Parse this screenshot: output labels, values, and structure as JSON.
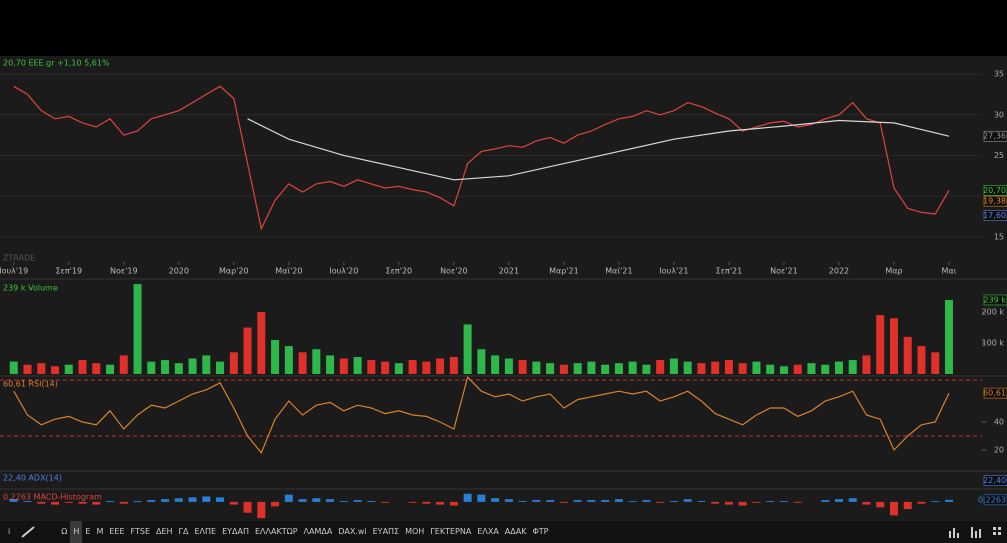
{
  "chart_data": [
    {
      "type": "line",
      "title": "20,70 EEE.gr +1,10 5,61%",
      "title_color": "#3ec43e",
      "watermark": "ZTRADE",
      "xlim": [
        -0.5,
        35.2
      ],
      "ylim": [
        11.9,
        37.1
      ],
      "yticks": [
        15,
        20,
        25,
        30,
        35
      ],
      "grid": true,
      "xticks": [
        {
          "value": 0,
          "label": "Ιουλ'19"
        },
        {
          "value": 2,
          "label": "Σεπ'19"
        },
        {
          "value": 4,
          "label": "Νοε'19"
        },
        {
          "value": 6,
          "label": "2020"
        },
        {
          "value": 8,
          "label": "Μαρ'20"
        },
        {
          "value": 10,
          "label": "Μαϊ'20"
        },
        {
          "value": 12,
          "label": "Ιουλ'20"
        },
        {
          "value": 14,
          "label": "Σεπ'20"
        },
        {
          "value": 16,
          "label": "Νοε'20"
        },
        {
          "value": 18,
          "label": "2021"
        },
        {
          "value": 20,
          "label": "Μαρ'21"
        },
        {
          "value": 22,
          "label": "Μαϊ'21"
        },
        {
          "value": 24,
          "label": "Ιουλ'21"
        },
        {
          "value": 26,
          "label": "Σεπ'21"
        },
        {
          "value": 28,
          "label": "Νοε'21"
        },
        {
          "value": 30,
          "label": "2022"
        },
        {
          "value": 32,
          "label": "Μαρ"
        },
        {
          "value": 34,
          "label": "Μαι"
        }
      ],
      "series": [
        {
          "color": "#e0443c",
          "x": [
            0,
            0.5,
            1,
            1.5,
            2,
            2.5,
            3,
            3.5,
            4,
            4.5,
            5,
            5.5,
            6,
            6.5,
            7,
            7.5,
            8,
            8.5,
            9,
            9.5,
            10,
            10.5,
            11,
            11.5,
            12,
            12.5,
            13,
            13.5,
            14,
            14.5,
            15,
            15.5,
            16,
            16.5,
            17,
            17.5,
            18,
            18.5,
            19,
            19.5,
            20,
            20.5,
            21,
            21.5,
            22,
            22.5,
            23,
            23.5,
            24,
            24.5,
            25,
            25.5,
            26,
            26.5,
            27,
            27.5,
            28,
            28.5,
            29,
            29.5,
            30,
            30.5,
            31,
            31.5,
            32,
            32.5,
            33,
            33.5,
            34
          ],
          "values": [
            33.5,
            32.5,
            30.5,
            29.5,
            29.8,
            29,
            28.5,
            29.5,
            27.5,
            28,
            29.5,
            30,
            30.5,
            31.5,
            32.5,
            33.5,
            32,
            24,
            16,
            19.5,
            21.5,
            20.5,
            21.5,
            21.8,
            21.2,
            22,
            21.5,
            21,
            21.2,
            20.8,
            20.5,
            19.8,
            18.8,
            24,
            25.5,
            25.8,
            26.2,
            26,
            26.8,
            27.2,
            26.5,
            27.5,
            28,
            28.8,
            29.5,
            29.8,
            30.5,
            30,
            30.5,
            31.5,
            31,
            30.2,
            29.5,
            28,
            28.5,
            29,
            29.2,
            28.5,
            28.8,
            29.5,
            30,
            31.5,
            29.5,
            29,
            21,
            18.5,
            18,
            17.8,
            20.7
          ]
        },
        {
          "color": "#d8d8d8",
          "x": [
            8.5,
            10,
            12,
            14,
            16,
            18,
            20,
            22,
            24,
            26,
            28,
            30,
            32,
            34
          ],
          "values": [
            29.5,
            27,
            25,
            23.5,
            22,
            22.5,
            24,
            25.5,
            27,
            28,
            28.6,
            29.3,
            29,
            27.36
          ]
        }
      ],
      "last_labels": [
        {
          "value": 27.36,
          "label": "27,36",
          "color": "#9a9a9a"
        },
        {
          "value": 20.7,
          "label": "20,70",
          "color": "#3ec43e"
        },
        {
          "value": 19.38,
          "label": "19,38",
          "color": "#e08a2a"
        },
        {
          "value": 17.6,
          "label": "17,60",
          "color": "#5a7fe0"
        }
      ]
    },
    {
      "type": "bar",
      "title": "239 k Volume",
      "title_color": "#3ec43e",
      "up_color": "#2fb84a",
      "down_color": "#e0302a",
      "xlim": [
        -0.5,
        35.2
      ],
      "ylim": [
        0,
        297000
      ],
      "yticks": [
        {
          "value": 100000,
          "label": "100 k"
        },
        {
          "value": 200000,
          "label": "200 k"
        }
      ],
      "x": [
        0,
        0.5,
        1,
        1.5,
        2,
        2.5,
        3,
        3.5,
        4,
        4.5,
        5,
        5.5,
        6,
        6.5,
        7,
        7.5,
        8,
        8.5,
        9,
        9.5,
        10,
        10.5,
        11,
        11.5,
        12,
        12.5,
        13,
        13.5,
        14,
        14.5,
        15,
        15.5,
        16,
        16.5,
        17,
        17.5,
        18,
        18.5,
        19,
        19.5,
        20,
        20.5,
        21,
        21.5,
        22,
        22.5,
        23,
        23.5,
        24,
        24.5,
        25,
        25.5,
        26,
        26.5,
        27,
        27.5,
        28,
        28.5,
        29,
        29.5,
        30,
        30.5,
        31,
        31.5,
        32,
        32.5,
        33,
        33.5,
        34
      ],
      "values": [
        40000,
        30000,
        35000,
        25000,
        30000,
        45000,
        35000,
        30000,
        60000,
        290000,
        40000,
        45000,
        35000,
        50000,
        60000,
        40000,
        70000,
        150000,
        200000,
        110000,
        90000,
        70000,
        80000,
        60000,
        50000,
        55000,
        45000,
        40000,
        35000,
        45000,
        40000,
        50000,
        55000,
        160000,
        80000,
        60000,
        50000,
        45000,
        40000,
        35000,
        30000,
        35000,
        40000,
        30000,
        35000,
        40000,
        30000,
        45000,
        50000,
        40000,
        35000,
        40000,
        45000,
        35000,
        40000,
        30000,
        25000,
        30000,
        35000,
        30000,
        40000,
        45000,
        60000,
        190000,
        180000,
        120000,
        90000,
        70000,
        239000
      ],
      "last_labels": [
        {
          "value": 239000,
          "label": "239 k",
          "color": "#3ec43e"
        }
      ]
    },
    {
      "type": "line",
      "title": "60,61 RSI(14)",
      "title_color": "#d9822b",
      "xlim": [
        -0.5,
        35.2
      ],
      "ylim": [
        5.7,
        71.4
      ],
      "yticks": [
        20,
        40
      ],
      "levels": [
        30,
        70
      ],
      "level_color": "#c0302a",
      "series": [
        {
          "color": "#d9822b",
          "x": [
            0,
            0.5,
            1,
            1.5,
            2,
            2.5,
            3,
            3.5,
            4,
            4.5,
            5,
            5.5,
            6,
            6.5,
            7,
            7.5,
            8,
            8.5,
            9,
            9.5,
            10,
            10.5,
            11,
            11.5,
            12,
            12.5,
            13,
            13.5,
            14,
            14.5,
            15,
            15.5,
            16,
            16.5,
            17,
            17.5,
            18,
            18.5,
            19,
            19.5,
            20,
            20.5,
            21,
            21.5,
            22,
            22.5,
            23,
            23.5,
            24,
            24.5,
            25,
            25.5,
            26,
            26.5,
            27,
            27.5,
            28,
            28.5,
            29,
            29.5,
            30,
            30.5,
            31,
            31.5,
            32,
            32.5,
            33,
            33.5,
            34
          ],
          "values": [
            62,
            45,
            38,
            42,
            44,
            40,
            38,
            48,
            35,
            45,
            52,
            50,
            55,
            60,
            63,
            68,
            50,
            30,
            18,
            42,
            55,
            45,
            52,
            54,
            48,
            52,
            50,
            46,
            48,
            45,
            44,
            40,
            35,
            72,
            62,
            58,
            60,
            55,
            58,
            60,
            50,
            56,
            58,
            60,
            62,
            60,
            62,
            55,
            58,
            62,
            55,
            46,
            42,
            38,
            45,
            50,
            50,
            44,
            48,
            55,
            58,
            62,
            45,
            42,
            20,
            30,
            38,
            40,
            60.61
          ]
        }
      ],
      "last_labels": [
        {
          "value": 60.61,
          "label": "60,61",
          "color": "#d9822b"
        }
      ]
    },
    {
      "type": "label",
      "title": "22,40 ADX(14)",
      "title_color": "#4a7fe0",
      "last_labels": [
        {
          "value": 22.4,
          "label": "22,40",
          "color": "#4a7fe0"
        }
      ]
    },
    {
      "type": "bar",
      "title": "0,2263 MACD-Histogram",
      "title_color": "#e0443c",
      "up_color": "#2a7fd4",
      "down_color": "#e0302a",
      "xlim": [
        -0.5,
        35.2
      ],
      "ylim": [
        -2,
        1.2
      ],
      "x": [
        0,
        0.5,
        1,
        1.5,
        2,
        2.5,
        3,
        3.5,
        4,
        4.5,
        5,
        5.5,
        6,
        6.5,
        7,
        7.5,
        8,
        8.5,
        9,
        9.5,
        10,
        10.5,
        11,
        11.5,
        12,
        12.5,
        13,
        13.5,
        14,
        14.5,
        15,
        15.5,
        16,
        16.5,
        17,
        17.5,
        18,
        18.5,
        19,
        19.5,
        20,
        20.5,
        21,
        21.5,
        22,
        22.5,
        23,
        23.5,
        24,
        24.5,
        25,
        25.5,
        26,
        26.5,
        27,
        27.5,
        28,
        28.5,
        29,
        29.5,
        30,
        30.5,
        31,
        31.5,
        32,
        32.5,
        33,
        33.5,
        34
      ],
      "values": [
        0.3,
        0.1,
        -0.2,
        -0.3,
        -0.1,
        -0.2,
        -0.3,
        0.1,
        -0.2,
        0.1,
        0.2,
        0.3,
        0.4,
        0.5,
        0.6,
        0.5,
        -0.3,
        -1.2,
        -1.8,
        -0.5,
        0.8,
        0.3,
        0.4,
        0.3,
        0.1,
        0.2,
        0.1,
        -0.1,
        0,
        -0.1,
        -0.2,
        -0.3,
        -0.4,
        0.9,
        0.8,
        0.4,
        0.3,
        0.1,
        0.2,
        0.2,
        -0.1,
        0.2,
        0.2,
        0.2,
        0.3,
        0.1,
        0.2,
        -0.1,
        0.1,
        0.3,
        0.1,
        -0.2,
        -0.3,
        -0.4,
        -0.1,
        0.1,
        0.1,
        -0.1,
        0,
        0.2,
        0.3,
        0.4,
        -0.3,
        -0.6,
        -1.5,
        -0.8,
        -0.2,
        0.1,
        0.2263
      ],
      "last_labels": [
        {
          "value": 0.2263,
          "label": "0,2263",
          "color": "#2a7fd4"
        }
      ]
    }
  ],
  "toolbar": {
    "items": [
      "Ω",
      "Η",
      "Ε",
      "Μ",
      "ΕΕΕ",
      "FTSE",
      "ΔΕΗ",
      "ΓΔ",
      "ΕΛΠΕ",
      "ΕΥΔΑΠ",
      "ΕΛΛΑΚΤΩΡ",
      "ΛΑΜΔΑ",
      "DAX.wi",
      "ΕΥΑΠΣ",
      "ΜΟΗ",
      "ΓΕΚΤΕΡΝΑ",
      "ΕΛΧΑ",
      "ΑΔΑΚ",
      "ΦΤΡ"
    ],
    "active": "Η"
  }
}
